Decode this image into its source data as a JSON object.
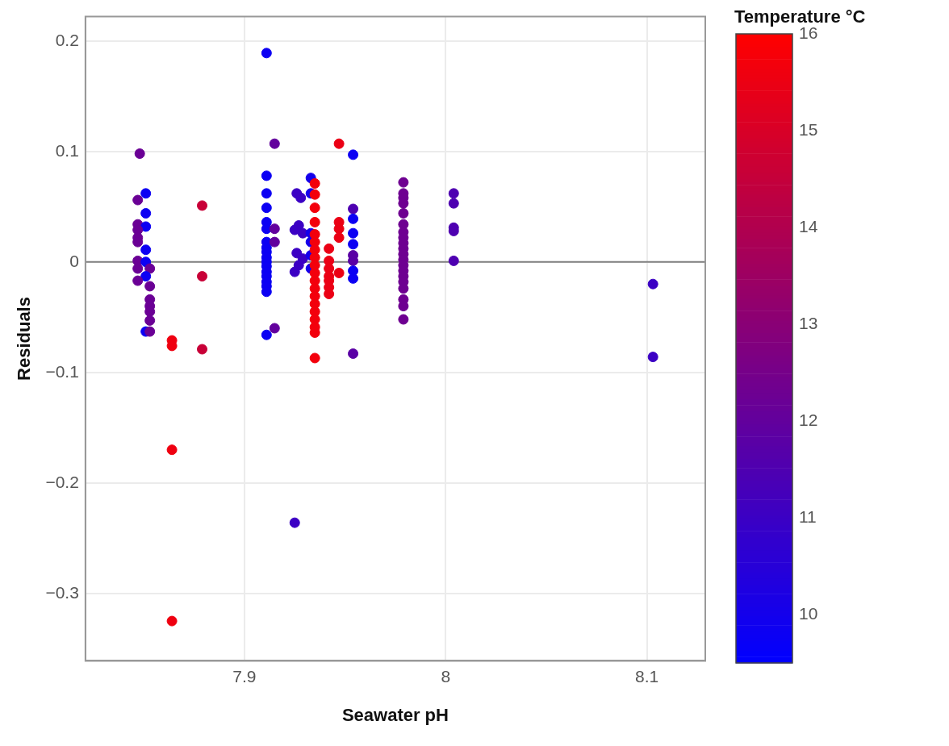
{
  "chart_data": {
    "type": "scatter",
    "xlabel": "Seawater pH",
    "ylabel": "Residuals",
    "clabel": "Temperature °C",
    "xlim": [
      7.821,
      8.129
    ],
    "xticks": [
      7.9,
      8,
      8.1
    ],
    "ylim": [
      -0.361,
      0.222
    ],
    "yticks": [
      {
        "value": -0.3,
        "label": "−0.3"
      },
      {
        "value": -0.2,
        "label": "−0.2"
      },
      {
        "value": -0.1,
        "label": "−0.1"
      },
      0,
      0.1,
      0.2
    ],
    "clim": [
      9.5,
      16
    ],
    "cticks": [
      10,
      11,
      12,
      13,
      14,
      15,
      16
    ],
    "grid": true,
    "legend": false,
    "marker": "circle",
    "ref_lines": [
      {
        "axis": "y",
        "value": 0,
        "color": "#808080"
      }
    ],
    "series": [
      {
        "x": [
          7.848,
          7.851,
          7.847,
          7.851,
          7.847,
          7.851,
          7.847,
          7.847,
          7.847,
          7.851,
          7.847,
          7.851,
          7.847,
          7.853,
          7.851,
          7.847,
          7.853,
          7.853,
          7.853,
          7.853,
          7.853,
          7.851,
          7.853,
          7.864,
          7.864,
          7.864,
          7.864,
          7.879,
          7.879,
          7.879,
          7.911,
          7.911,
          7.911,
          7.911,
          7.911,
          7.911,
          7.911,
          7.911,
          7.911,
          7.911,
          7.911,
          7.911,
          7.911,
          7.911,
          7.911,
          7.911,
          7.911,
          7.911,
          7.915,
          7.915,
          7.915,
          7.915,
          7.926,
          7.928,
          7.927,
          7.925,
          7.929,
          7.926,
          7.929,
          7.927,
          7.925,
          7.925,
          7.933,
          7.933,
          7.933,
          7.933,
          7.933,
          7.933,
          7.935,
          7.935,
          7.935,
          7.935,
          7.935,
          7.935,
          7.935,
          7.935,
          7.935,
          7.935,
          7.935,
          7.935,
          7.935,
          7.935,
          7.935,
          7.935,
          7.935,
          7.935,
          7.935,
          7.942,
          7.942,
          7.942,
          7.942,
          7.942,
          7.942,
          7.942,
          7.947,
          7.947,
          7.947,
          7.947,
          7.947,
          7.954,
          7.954,
          7.954,
          7.954,
          7.954,
          7.954,
          7.954,
          7.954,
          7.954,
          7.954,
          7.979,
          7.979,
          7.979,
          7.979,
          7.979,
          7.979,
          7.979,
          7.979,
          7.979,
          7.979,
          7.979,
          7.979,
          7.979,
          7.979,
          7.979,
          7.979,
          7.979,
          7.979,
          7.979,
          7.979,
          8.004,
          8.004,
          8.004,
          8.004,
          8.004,
          8.103,
          8.103
        ],
        "values": [
          0.098,
          0.062,
          0.056,
          0.044,
          0.034,
          0.032,
          0.029,
          0.022,
          0.018,
          0.011,
          0.001,
          0.0,
          -0.006,
          -0.006,
          -0.013,
          -0.017,
          -0.022,
          -0.034,
          -0.04,
          -0.045,
          -0.053,
          -0.063,
          -0.063,
          -0.071,
          -0.076,
          -0.17,
          -0.325,
          0.051,
          -0.013,
          -0.079,
          0.189,
          0.078,
          0.062,
          0.049,
          0.036,
          0.03,
          0.018,
          0.013,
          0.009,
          0.004,
          0.0,
          -0.004,
          -0.009,
          -0.013,
          -0.018,
          -0.022,
          -0.027,
          -0.066,
          0.107,
          0.03,
          0.018,
          -0.06,
          0.062,
          0.058,
          0.033,
          0.029,
          0.026,
          0.008,
          0.003,
          -0.003,
          -0.009,
          -0.236,
          0.076,
          0.062,
          0.026,
          0.018,
          0.006,
          -0.006,
          0.071,
          0.061,
          0.049,
          0.036,
          0.025,
          0.018,
          0.011,
          0.004,
          -0.003,
          -0.01,
          -0.017,
          -0.024,
          -0.031,
          -0.038,
          -0.045,
          -0.052,
          -0.059,
          -0.064,
          -0.087,
          0.012,
          0.001,
          -0.006,
          -0.013,
          -0.017,
          -0.023,
          -0.029,
          0.107,
          0.036,
          0.03,
          0.022,
          -0.01,
          0.097,
          0.048,
          0.039,
          0.026,
          0.016,
          0.006,
          0.001,
          -0.008,
          -0.015,
          -0.083,
          0.072,
          0.062,
          0.058,
          0.053,
          0.044,
          0.034,
          0.027,
          0.022,
          0.017,
          0.012,
          0.007,
          0.002,
          -0.003,
          -0.008,
          -0.013,
          -0.018,
          -0.024,
          -0.034,
          -0.04,
          -0.052,
          0.062,
          0.053,
          0.031,
          0.028,
          0.001,
          -0.02,
          -0.086
        ],
        "cvalues": [
          12.2,
          9.8,
          12.2,
          9.8,
          12.2,
          9.8,
          12.2,
          12.2,
          12.2,
          9.8,
          12.2,
          9.8,
          12.2,
          12.2,
          9.8,
          12.2,
          12.2,
          12.2,
          12.2,
          12.2,
          12.2,
          9.8,
          12.2,
          15.6,
          15.6,
          15.6,
          15.6,
          14.6,
          14.6,
          14.6,
          9.8,
          9.8,
          9.8,
          9.8,
          9.8,
          9.8,
          9.8,
          9.8,
          9.8,
          9.8,
          9.8,
          9.8,
          9.8,
          9.8,
          9.8,
          9.8,
          9.8,
          9.8,
          12.0,
          12.0,
          12.0,
          12.0,
          11.0,
          11.0,
          11.0,
          11.0,
          11.0,
          11.0,
          11.0,
          11.0,
          11.0,
          11.0,
          10.0,
          10.0,
          10.0,
          10.0,
          10.0,
          10.0,
          15.7,
          15.7,
          15.7,
          15.7,
          15.7,
          15.7,
          15.7,
          15.7,
          15.7,
          15.7,
          15.7,
          15.7,
          15.7,
          15.7,
          15.7,
          15.7,
          15.7,
          15.7,
          15.7,
          15.5,
          15.5,
          15.5,
          15.5,
          15.5,
          15.5,
          15.5,
          15.5,
          15.5,
          15.5,
          15.5,
          15.5,
          9.8,
          11.5,
          9.8,
          9.8,
          9.8,
          11.8,
          11.8,
          9.8,
          9.8,
          11.8,
          12.3,
          12.3,
          12.3,
          12.3,
          12.3,
          12.3,
          12.3,
          12.3,
          12.3,
          12.3,
          12.3,
          12.3,
          12.3,
          12.3,
          12.3,
          12.3,
          12.3,
          12.3,
          12.3,
          12.3,
          11.5,
          11.5,
          11.5,
          11.5,
          11.5,
          11.0,
          11.0
        ]
      }
    ]
  }
}
